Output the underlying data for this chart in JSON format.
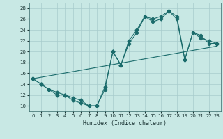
{
  "xlabel": "Humidex (Indice chaleur)",
  "xlim": [
    -0.5,
    23.5
  ],
  "ylim": [
    9,
    29
  ],
  "yticks": [
    10,
    12,
    14,
    16,
    18,
    20,
    22,
    24,
    26,
    28
  ],
  "xticks": [
    0,
    1,
    2,
    3,
    4,
    5,
    6,
    7,
    8,
    9,
    10,
    11,
    12,
    13,
    14,
    15,
    16,
    17,
    18,
    19,
    20,
    21,
    22,
    23
  ],
  "bg_color": "#c8e8e4",
  "grid_color": "#a8cccc",
  "line_color": "#1a6b6b",
  "line1_x": [
    0,
    1,
    2,
    3,
    4,
    5,
    6,
    7,
    8,
    9,
    10,
    11,
    12,
    13,
    14,
    15,
    16,
    17,
    18,
    19,
    20,
    21,
    22,
    23
  ],
  "line1_y": [
    15,
    14,
    13,
    12,
    12,
    11,
    10.5,
    10,
    10,
    13.5,
    20,
    17.5,
    21.5,
    23.5,
    26.5,
    26,
    26.5,
    27.5,
    26.5,
    18.5,
    23.5,
    23,
    21.5,
    21.5
  ],
  "line2_x": [
    0,
    1,
    2,
    3,
    4,
    5,
    6,
    7,
    8,
    9,
    10,
    11,
    12,
    13,
    14,
    15,
    16,
    17,
    18,
    19,
    20,
    21,
    22,
    23
  ],
  "line2_y": [
    15,
    14,
    13,
    12.5,
    12,
    11.5,
    11,
    10,
    10,
    13,
    20,
    17.5,
    22,
    24,
    26.5,
    25.5,
    26,
    27.5,
    26,
    18.5,
    23.5,
    22.5,
    22,
    21.5
  ],
  "line3_x": [
    0,
    23
  ],
  "line3_y": [
    15,
    21
  ],
  "marker_size": 2.5,
  "linewidth": 0.8,
  "tick_fontsize": 5.0,
  "xlabel_fontsize": 6.0
}
